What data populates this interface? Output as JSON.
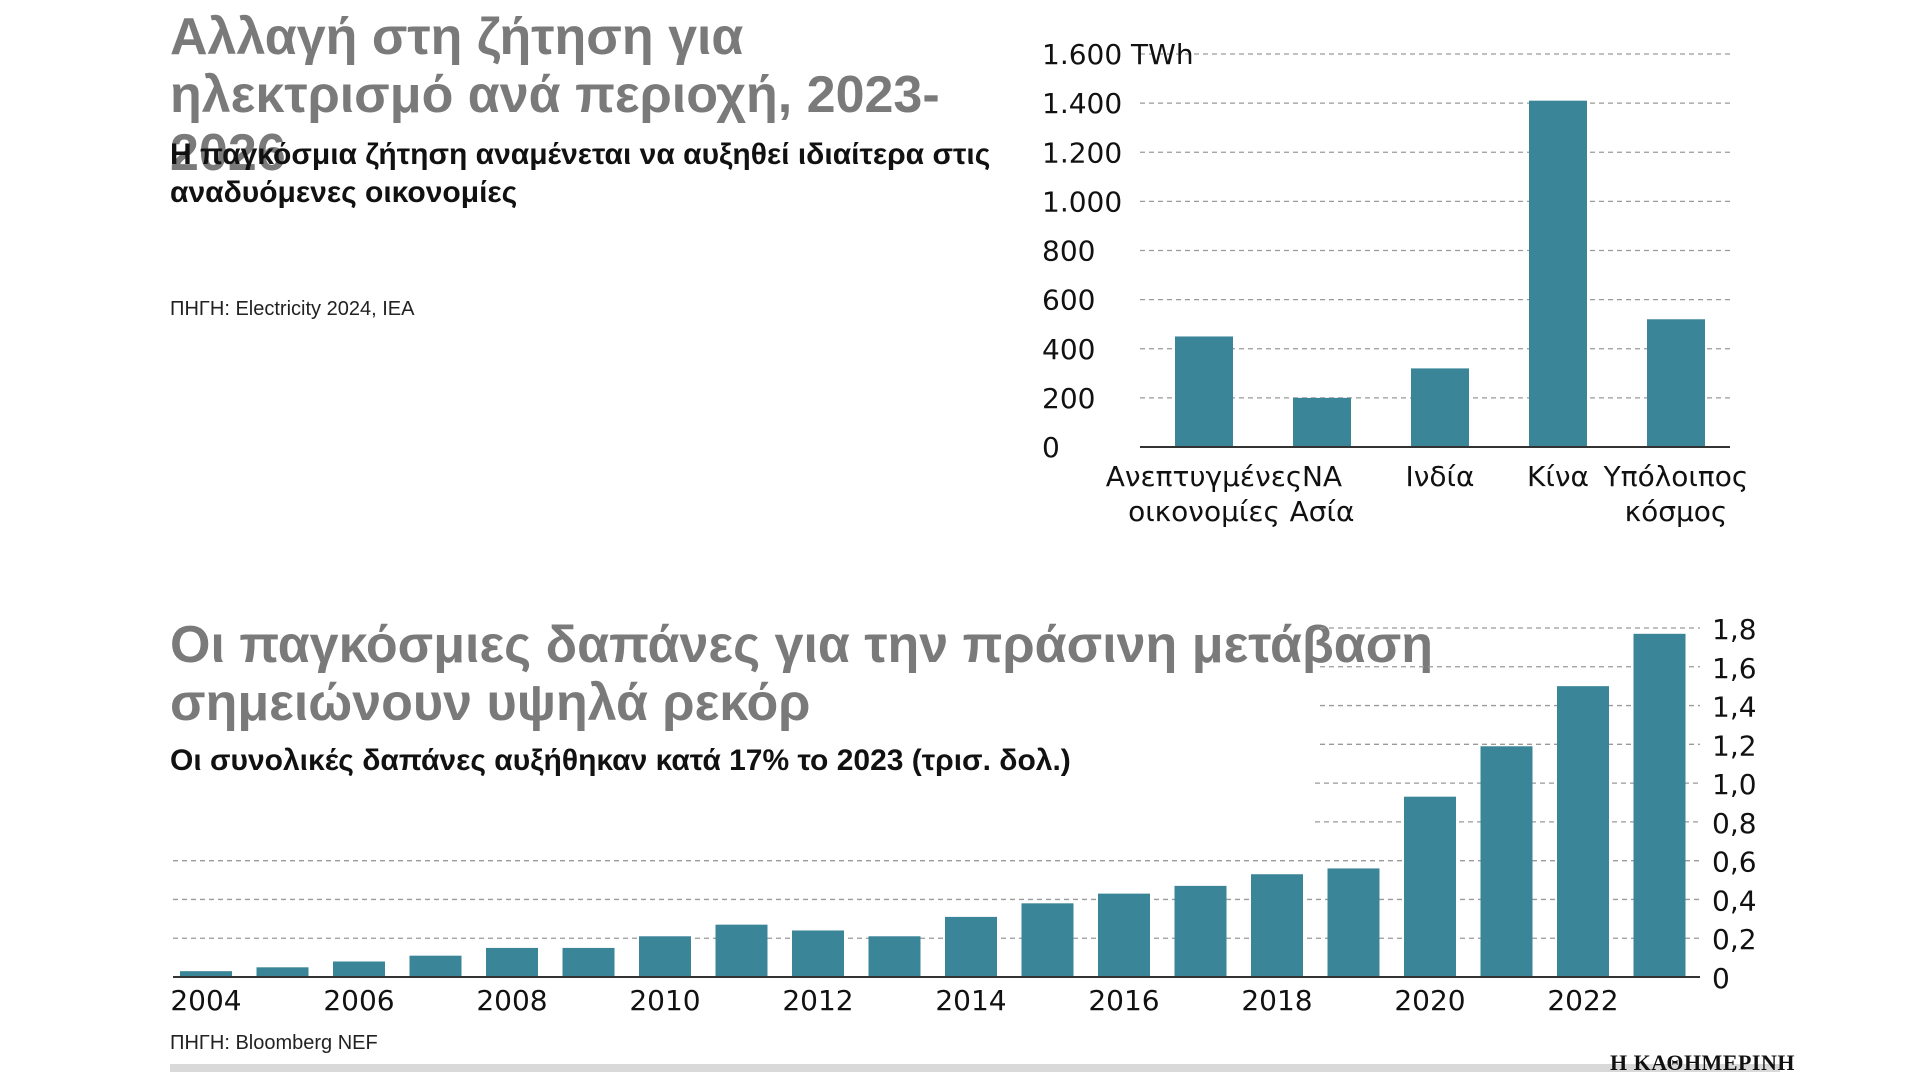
{
  "top": {
    "title": "Αλλαγή στη ζήτηση για ηλεκτρισμό ανά περιοχή, 2023-2026",
    "subtitle": "Η παγκόσμια ζήτηση αναμένεται να αυξηθεί ιδιαίτερα στις αναδυόμενες οικονομίες",
    "source": "ΠΗΓΗ: Electricity 2024, IEA"
  },
  "bottom": {
    "title": "Οι παγκόσμιες δαπάνες για την πράσινη μετάβαση σημειώνουν υψηλά ρεκόρ",
    "subtitle": "Οι συνολικές δαπάνες αυξήθηκαν κατά 17% το 2023 (τρισ. δολ.)",
    "source": "ΠΗΓΗ: Bloomberg NEF"
  },
  "brand": "Η ΚΑΘΗΜΕΡΙΝΗ",
  "colors": {
    "bar": "#3a8598",
    "grid": "#9a9a9a",
    "axis": "#333333"
  },
  "chart_data": [
    {
      "type": "bar",
      "title": "Αλλαγή στη ζήτηση για ηλεκτρισμό ανά περιοχή, 2023-2026",
      "categories": [
        [
          "Ανεπτυγμένες",
          "οικονομίες"
        ],
        [
          "ΝΑ",
          "Ασία"
        ],
        [
          "Ινδία"
        ],
        [
          "Κίνα"
        ],
        [
          "Υπόλοιπος",
          "κόσμος"
        ]
      ],
      "values": [
        450,
        200,
        320,
        1410,
        520
      ],
      "unit": "TWh",
      "yticks": [
        0,
        200,
        400,
        600,
        800,
        1000,
        1200,
        1400,
        1600
      ],
      "ytick_labels": [
        "0",
        "200",
        "400",
        "600",
        "800",
        "1.000",
        "1.200",
        "1.400",
        "1.600"
      ],
      "ylim": [
        0,
        1600
      ],
      "grid": true
    },
    {
      "type": "bar",
      "title": "Οι παγκόσμιες δαπάνες για την πράσινη μετάβαση σημειώνουν υψηλά ρεκόρ",
      "x": [
        2004,
        2005,
        2006,
        2007,
        2008,
        2009,
        2010,
        2011,
        2012,
        2013,
        2014,
        2015,
        2016,
        2017,
        2018,
        2019,
        2020,
        2021,
        2022,
        2023
      ],
      "values": [
        0.03,
        0.05,
        0.08,
        0.11,
        0.15,
        0.15,
        0.21,
        0.27,
        0.24,
        0.21,
        0.31,
        0.38,
        0.43,
        0.47,
        0.53,
        0.56,
        0.93,
        1.19,
        1.5,
        1.77
      ],
      "xtick_labels": [
        "2004",
        "2006",
        "2008",
        "2010",
        "2012",
        "2014",
        "2016",
        "2018",
        "2020",
        "2022"
      ],
      "yticks": [
        0,
        0.2,
        0.4,
        0.6,
        0.8,
        1.0,
        1.2,
        1.4,
        1.6,
        1.8
      ],
      "ytick_labels": [
        "0",
        "0,2",
        "0,4",
        "0,6",
        "0,8",
        "1,0",
        "1,2",
        "1,4",
        "1,6",
        "1,8"
      ],
      "ylim": [
        0,
        1.8
      ],
      "ylabel": "τρισ. δολ.",
      "grid": true
    }
  ]
}
